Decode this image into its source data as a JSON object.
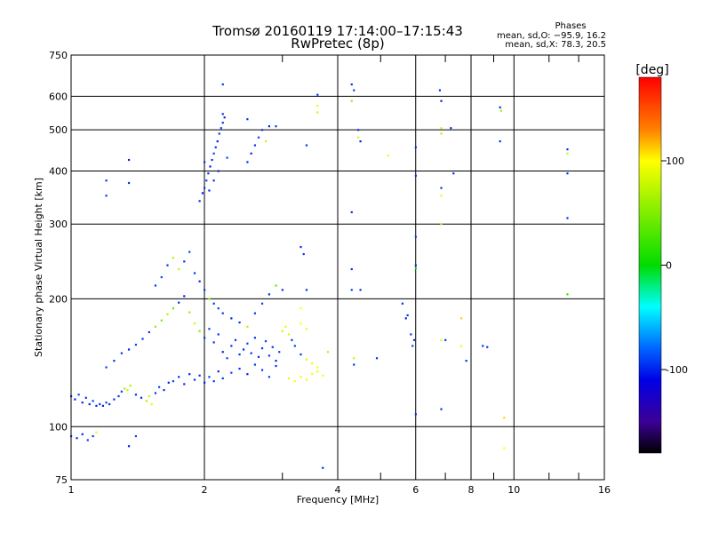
{
  "chart_data": {
    "type": "scatter",
    "title": "Tromsø 20160119 17:14:00–17:15:43",
    "subtitle": "RwPretec (8p)",
    "xlabel": "Frequency [MHz]",
    "ylabel": "Stationary phase Virtual Height [km]",
    "x_scale": "log",
    "y_scale": "log",
    "xlim": [
      1,
      16
    ],
    "ylim": [
      75,
      750
    ],
    "x_ticks": [
      1,
      2,
      4,
      6,
      8,
      10,
      16
    ],
    "x_minor_ticks": [
      3,
      5,
      7,
      9,
      12,
      14
    ],
    "y_ticks": [
      75,
      100,
      200,
      300,
      400,
      500,
      600,
      750
    ],
    "grid": true,
    "stats": {
      "title": "Phases",
      "line_o": "mean, sd,O: −95.9, 16.2",
      "line_x": "mean, sd,X:  78.3, 20.5"
    },
    "colorbar": {
      "label": "[deg]",
      "ticks": [
        100,
        0,
        -100
      ],
      "range": [
        -180,
        180
      ],
      "colors": [
        "#ff0000",
        "#ff8000",
        "#ffff00",
        "#00e000",
        "#00ffff",
        "#0040ff",
        "#3000c0",
        "#000000"
      ]
    },
    "points": [
      [
        1.0,
        118,
        -95
      ],
      [
        1.02,
        116,
        -100
      ],
      [
        1.04,
        119,
        -90
      ],
      [
        1.06,
        114,
        -100
      ],
      [
        1.08,
        117,
        -95
      ],
      [
        1.1,
        113,
        -100
      ],
      [
        1.12,
        115,
        -90
      ],
      [
        1.14,
        112,
        -100
      ],
      [
        1.16,
        113,
        -95
      ],
      [
        1.18,
        112,
        -100
      ],
      [
        1.2,
        114,
        -90
      ],
      [
        1.22,
        113,
        -100
      ],
      [
        1.25,
        116,
        -95
      ],
      [
        1.28,
        118,
        -95
      ],
      [
        1.3,
        121,
        -90
      ],
      [
        1.32,
        123,
        60
      ],
      [
        1.34,
        122,
        80
      ],
      [
        1.36,
        125,
        70
      ],
      [
        1.4,
        119,
        -95
      ],
      [
        1.44,
        117,
        -95
      ],
      [
        1.48,
        115,
        70
      ],
      [
        1.5,
        118,
        80
      ],
      [
        1.52,
        113,
        90
      ],
      [
        1.55,
        120,
        -95
      ],
      [
        1.58,
        124,
        -90
      ],
      [
        1.62,
        122,
        -95
      ],
      [
        1.66,
        127,
        -100
      ],
      [
        1.7,
        128,
        -90
      ],
      [
        1.75,
        131,
        -95
      ],
      [
        1.8,
        126,
        -95
      ],
      [
        1.85,
        133,
        -100
      ],
      [
        1.9,
        129,
        -95
      ],
      [
        1.95,
        132,
        -95
      ],
      [
        2.0,
        127,
        -100
      ],
      [
        2.05,
        131,
        -90
      ],
      [
        2.1,
        128,
        -95
      ],
      [
        2.15,
        135,
        -100
      ],
      [
        2.2,
        130,
        -95
      ],
      [
        2.3,
        134,
        -90
      ],
      [
        2.4,
        137,
        -95
      ],
      [
        2.5,
        133,
        -100
      ],
      [
        2.6,
        140,
        -95
      ],
      [
        2.7,
        136,
        -95
      ],
      [
        2.8,
        131,
        -90
      ],
      [
        2.9,
        139,
        -95
      ],
      [
        1.0,
        95,
        -90
      ],
      [
        1.03,
        94,
        -95
      ],
      [
        1.06,
        96,
        -100
      ],
      [
        1.09,
        93,
        -90
      ],
      [
        1.12,
        95,
        -95
      ],
      [
        1.14,
        97,
        90
      ],
      [
        1.35,
        90,
        -100
      ],
      [
        1.2,
        138,
        -90
      ],
      [
        1.25,
        143,
        -95
      ],
      [
        1.3,
        149,
        -95
      ],
      [
        1.35,
        152,
        -100
      ],
      [
        1.4,
        156,
        -90
      ],
      [
        1.45,
        161,
        -95
      ],
      [
        1.5,
        167,
        -95
      ],
      [
        1.55,
        172,
        60
      ],
      [
        1.6,
        178,
        50
      ],
      [
        1.65,
        184,
        70
      ],
      [
        1.7,
        190,
        40
      ],
      [
        1.75,
        196,
        -95
      ],
      [
        1.8,
        203,
        -100
      ],
      [
        1.85,
        186,
        60
      ],
      [
        1.9,
        175,
        80
      ],
      [
        1.95,
        168,
        50
      ],
      [
        2.0,
        162,
        -95
      ],
      [
        2.05,
        170,
        -90
      ],
      [
        2.1,
        158,
        -95
      ],
      [
        2.15,
        165,
        -95
      ],
      [
        2.2,
        150,
        -100
      ],
      [
        2.25,
        145,
        -90
      ],
      [
        2.3,
        155,
        -95
      ],
      [
        2.35,
        160,
        -95
      ],
      [
        2.4,
        148,
        -95
      ],
      [
        2.45,
        152,
        -100
      ],
      [
        2.5,
        157,
        -90
      ],
      [
        2.55,
        149,
        -95
      ],
      [
        2.6,
        162,
        -95
      ],
      [
        2.65,
        146,
        -100
      ],
      [
        2.7,
        153,
        -95
      ],
      [
        2.75,
        159,
        -90
      ],
      [
        2.8,
        147,
        -95
      ],
      [
        2.85,
        154,
        -95
      ],
      [
        2.9,
        143,
        -100
      ],
      [
        2.95,
        150,
        -90
      ],
      [
        3.0,
        168,
        80
      ],
      [
        3.05,
        172,
        90
      ],
      [
        3.1,
        165,
        85
      ],
      [
        3.15,
        160,
        -95
      ],
      [
        3.2,
        155,
        -90
      ],
      [
        3.3,
        148,
        -95
      ],
      [
        3.4,
        144,
        90
      ],
      [
        3.5,
        141,
        95
      ],
      [
        3.6,
        138,
        100
      ],
      [
        3.1,
        130,
        95
      ],
      [
        3.2,
        128,
        100
      ],
      [
        3.3,
        131,
        95
      ],
      [
        3.4,
        129,
        90
      ],
      [
        3.5,
        133,
        100
      ],
      [
        3.6,
        135,
        95
      ],
      [
        3.7,
        132,
        100
      ],
      [
        3.8,
        150,
        110
      ],
      [
        3.3,
        175,
        100
      ],
      [
        3.4,
        170,
        95
      ],
      [
        1.55,
        215,
        -95
      ],
      [
        1.6,
        225,
        -90
      ],
      [
        1.65,
        240,
        -95
      ],
      [
        1.7,
        250,
        70
      ],
      [
        1.75,
        235,
        80
      ],
      [
        1.8,
        245,
        -95
      ],
      [
        1.85,
        258,
        -90
      ],
      [
        1.9,
        230,
        -95
      ],
      [
        1.95,
        220,
        -100
      ],
      [
        2.0,
        210,
        -95
      ],
      [
        2.05,
        200,
        60
      ],
      [
        2.1,
        195,
        -95
      ],
      [
        2.15,
        190,
        -90
      ],
      [
        2.2,
        185,
        -95
      ],
      [
        2.3,
        180,
        -100
      ],
      [
        2.4,
        176,
        -95
      ],
      [
        2.5,
        172,
        70
      ],
      [
        2.6,
        185,
        -95
      ],
      [
        2.7,
        195,
        -90
      ],
      [
        2.8,
        205,
        -95
      ],
      [
        2.9,
        215,
        40
      ],
      [
        3.0,
        210,
        -95
      ],
      [
        3.3,
        190,
        100
      ],
      [
        3.4,
        210,
        -95
      ],
      [
        3.35,
        255,
        -95
      ],
      [
        1.95,
        340,
        -95
      ],
      [
        1.98,
        355,
        -100
      ],
      [
        2.0,
        365,
        -95
      ],
      [
        2.02,
        380,
        -90
      ],
      [
        2.04,
        395,
        -95
      ],
      [
        2.06,
        410,
        -100
      ],
      [
        2.08,
        425,
        -95
      ],
      [
        2.1,
        440,
        -90
      ],
      [
        2.12,
        455,
        -95
      ],
      [
        2.14,
        470,
        -100
      ],
      [
        2.16,
        490,
        -95
      ],
      [
        2.18,
        505,
        -90
      ],
      [
        2.2,
        520,
        -95
      ],
      [
        2.22,
        535,
        -100
      ],
      [
        2.05,
        360,
        -95
      ],
      [
        2.1,
        380,
        -95
      ],
      [
        2.15,
        400,
        -100
      ],
      [
        2.0,
        420,
        -95
      ],
      [
        2.25,
        430,
        -90
      ],
      [
        2.2,
        545,
        -95
      ],
      [
        2.5,
        420,
        -95
      ],
      [
        2.55,
        440,
        -100
      ],
      [
        2.6,
        460,
        -95
      ],
      [
        2.65,
        480,
        -90
      ],
      [
        2.7,
        500,
        -95
      ],
      [
        2.5,
        530,
        -95
      ],
      [
        2.8,
        510,
        -100
      ],
      [
        2.75,
        470,
        80
      ],
      [
        2.9,
        510,
        -95
      ],
      [
        2.2,
        640,
        -95
      ],
      [
        1.2,
        380,
        -95
      ],
      [
        1.2,
        350,
        -95
      ],
      [
        1.35,
        425,
        -100
      ],
      [
        1.35,
        375,
        -95
      ],
      [
        3.6,
        605,
        -95
      ],
      [
        3.6,
        570,
        90
      ],
      [
        3.6,
        550,
        80
      ],
      [
        3.4,
        460,
        -95
      ],
      [
        3.3,
        265,
        -95
      ],
      [
        4.3,
        640,
        -95
      ],
      [
        4.35,
        620,
        -90
      ],
      [
        4.3,
        585,
        60
      ],
      [
        4.45,
        500,
        -95
      ],
      [
        4.45,
        480,
        85
      ],
      [
        4.5,
        470,
        -100
      ],
      [
        4.3,
        320,
        -95
      ],
      [
        4.3,
        235,
        -95
      ],
      [
        4.3,
        210,
        -90
      ],
      [
        4.35,
        140,
        -95
      ],
      [
        4.35,
        145,
        80
      ],
      [
        4.5,
        210,
        -95
      ],
      [
        4.9,
        145,
        -95
      ],
      [
        5.2,
        435,
        90
      ],
      [
        5.6,
        195,
        -95
      ],
      [
        5.7,
        180,
        -100
      ],
      [
        5.75,
        183,
        -95
      ],
      [
        5.85,
        165,
        -95
      ],
      [
        5.9,
        155,
        -90
      ],
      [
        5.95,
        160,
        -95
      ],
      [
        6.0,
        455,
        -95
      ],
      [
        6.0,
        390,
        -95
      ],
      [
        6.0,
        280,
        -90
      ],
      [
        6.0,
        240,
        -95
      ],
      [
        6.0,
        236,
        10
      ],
      [
        6.0,
        107,
        -95
      ],
      [
        6.8,
        620,
        -95
      ],
      [
        6.85,
        585,
        -100
      ],
      [
        6.85,
        505,
        80
      ],
      [
        6.85,
        490,
        70
      ],
      [
        6.85,
        365,
        -95
      ],
      [
        6.85,
        350,
        90
      ],
      [
        6.85,
        300,
        110
      ],
      [
        6.85,
        110,
        -95
      ],
      [
        6.85,
        160,
        90
      ],
      [
        7.0,
        160,
        -95
      ],
      [
        7.2,
        505,
        -95
      ],
      [
        7.3,
        395,
        -95
      ],
      [
        7.6,
        180,
        110
      ],
      [
        7.6,
        155,
        90
      ],
      [
        7.8,
        143,
        -95
      ],
      [
        8.5,
        155,
        -95
      ],
      [
        8.7,
        154,
        -95
      ],
      [
        9.3,
        565,
        -95
      ],
      [
        9.35,
        555,
        60
      ],
      [
        9.3,
        470,
        -95
      ],
      [
        9.5,
        105,
        110
      ],
      [
        9.5,
        89,
        100
      ],
      [
        13.2,
        450,
        -95
      ],
      [
        13.2,
        440,
        80
      ],
      [
        13.2,
        395,
        -95
      ],
      [
        13.2,
        310,
        -95
      ],
      [
        13.2,
        205,
        20
      ],
      [
        1.4,
        95,
        -90
      ],
      [
        3.7,
        80,
        -95
      ]
    ]
  }
}
